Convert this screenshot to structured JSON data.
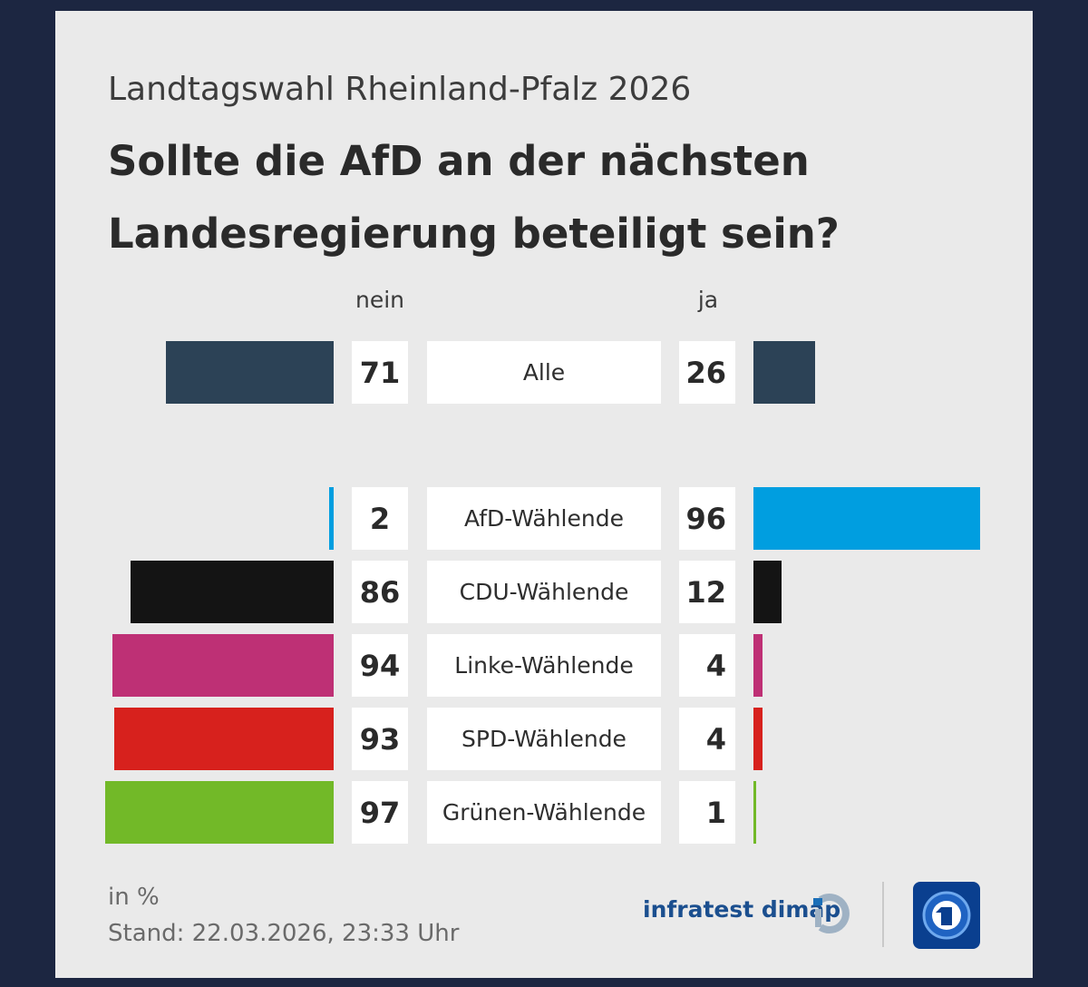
{
  "header": {
    "subtitle": "Landtagswahl Rheinland-Pfalz 2026",
    "title": "Sollte die AfD an der nächsten Landesregierung beteiligt sein?"
  },
  "chart_data": {
    "type": "bar",
    "title": "Sollte die AfD an der nächsten Landesregierung beteiligt sein?",
    "subtitle": "Landtagswahl Rheinland-Pfalz 2026",
    "unit": "in %",
    "series": [
      {
        "name": "nein",
        "values": [
          71,
          2,
          86,
          94,
          93,
          97
        ]
      },
      {
        "name": "ja",
        "values": [
          26,
          96,
          12,
          4,
          4,
          1
        ]
      }
    ],
    "categories": [
      "Alle",
      "AfD-Wählende",
      "CDU-Wählende",
      "Linke-Wählende",
      "SPD-Wählende",
      "Grünen-Wählende"
    ],
    "colors": [
      "#2c4256",
      "#009ee0",
      "#141414",
      "#be3075",
      "#d7211d",
      "#72b928"
    ]
  },
  "columns": {
    "nein": "nein",
    "ja": "ja"
  },
  "footer": {
    "unit": "in %",
    "stand": "Stand:  22.03.2026, 23:33 Uhr",
    "brand": "infratest dimap"
  }
}
